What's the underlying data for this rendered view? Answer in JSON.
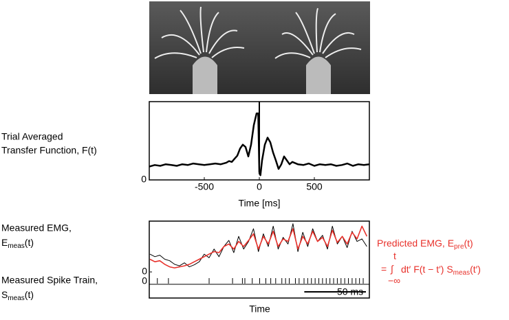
{
  "chart_data": [
    {
      "type": "line",
      "ylabel": [
        "Trial Averaged",
        "Transfer Function, F(t)"
      ],
      "xlabel": "Time [ms]",
      "x": [
        -1000,
        -950,
        -900,
        -850,
        -800,
        -750,
        -700,
        -650,
        -600,
        -550,
        -500,
        -450,
        -400,
        -350,
        -300,
        -275,
        -250,
        -225,
        -200,
        -175,
        -150,
        -125,
        -100,
        -75,
        -50,
        -25,
        -10,
        0,
        10,
        25,
        50,
        75,
        100,
        125,
        150,
        175,
        200,
        225,
        250,
        275,
        300,
        350,
        400,
        450,
        500,
        550,
        600,
        650,
        700,
        750,
        800,
        850,
        900,
        950,
        1000
      ],
      "series": [
        {
          "color": "#000000",
          "values": [
            0.17,
            0.19,
            0.18,
            0.2,
            0.19,
            0.18,
            0.2,
            0.19,
            0.21,
            0.2,
            0.19,
            0.2,
            0.21,
            0.2,
            0.22,
            0.24,
            0.23,
            0.27,
            0.31,
            0.4,
            0.45,
            0.42,
            0.3,
            0.45,
            0.7,
            0.85,
            0.85,
            0.1,
            0.06,
            0.25,
            0.45,
            0.54,
            0.48,
            0.35,
            0.25,
            0.14,
            0.2,
            0.3,
            0.25,
            0.2,
            0.23,
            0.2,
            0.19,
            0.21,
            0.18,
            0.2,
            0.19,
            0.2,
            0.18,
            0.19,
            0.21,
            0.18,
            0.2,
            0.19,
            0.2
          ]
        }
      ],
      "vline": 0,
      "xlim": [
        -1000,
        1000
      ],
      "ylim": [
        0,
        1
      ],
      "xticks": [
        -500,
        0,
        500
      ],
      "yticks": [
        0
      ]
    },
    {
      "type": "line",
      "label": {
        "line1": "Measured EMG,",
        "symbol": "E",
        "sub": "meas",
        "tail": "(t)"
      },
      "xlabel": "Time",
      "x": [
        0,
        4,
        8,
        12,
        16,
        20,
        24,
        28,
        32,
        36,
        40,
        44,
        48,
        52,
        56,
        60,
        64,
        68,
        72,
        76,
        80,
        84,
        88,
        92,
        96,
        100,
        104,
        108,
        112,
        116,
        120,
        124,
        128,
        132,
        136,
        140,
        144,
        148,
        152,
        156,
        160,
        164,
        168,
        172,
        176
      ],
      "series": [
        {
          "color": "#000000",
          "values": [
            0.35,
            0.3,
            0.33,
            0.25,
            0.22,
            0.15,
            0.12,
            0.18,
            0.1,
            0.14,
            0.2,
            0.35,
            0.28,
            0.45,
            0.3,
            0.5,
            0.62,
            0.38,
            0.7,
            0.45,
            0.6,
            0.85,
            0.4,
            0.75,
            0.5,
            0.9,
            0.45,
            0.68,
            0.55,
            0.95,
            0.4,
            0.78,
            0.5,
            0.85,
            0.6,
            0.72,
            0.45,
            0.9,
            0.55,
            0.7,
            0.48,
            0.8,
            0.6,
            0.65,
            0.5
          ]
        },
        {
          "color": "#e8302a",
          "values": [
            0.25,
            0.2,
            0.22,
            0.15,
            0.1,
            0.08,
            0.1,
            0.12,
            0.15,
            0.2,
            0.25,
            0.3,
            0.35,
            0.4,
            0.38,
            0.5,
            0.55,
            0.45,
            0.6,
            0.5,
            0.62,
            0.75,
            0.45,
            0.7,
            0.55,
            0.8,
            0.5,
            0.65,
            0.6,
            0.85,
            0.45,
            0.7,
            0.55,
            0.8,
            0.6,
            0.68,
            0.5,
            0.82,
            0.58,
            0.7,
            0.55,
            0.78,
            0.65,
            0.9,
            0.7
          ]
        }
      ],
      "annotation": {
        "line1": "Predicted EMG, E",
        "sub1": "pre",
        "tail1": "(t)",
        "prefix": "=",
        "integral": "∫",
        "upper": "t",
        "lower": "−∞",
        "body": "dt′ F(t − t′) S",
        "sub2": "meas",
        "tail2": "(t′)"
      },
      "xlim": [
        0,
        178
      ],
      "ylim": [
        0,
        1
      ],
      "yticks": [
        0
      ]
    },
    {
      "type": "raster",
      "label": {
        "line1": "Measured Spike Train,",
        "symbol": "S",
        "sub": "meas",
        "tail": "(t)"
      },
      "x": [
        6,
        15,
        48,
        67,
        75,
        77,
        83,
        89,
        94,
        98,
        102,
        107,
        110,
        113,
        118,
        121,
        125,
        128,
        131,
        134,
        137,
        140,
        143,
        146,
        149,
        152,
        155,
        158,
        161,
        164,
        167,
        170,
        173
      ],
      "scalebar": {
        "value": 50,
        "label": "50 ms"
      },
      "xlim": [
        0,
        178
      ],
      "yticks": [
        0
      ]
    }
  ]
}
